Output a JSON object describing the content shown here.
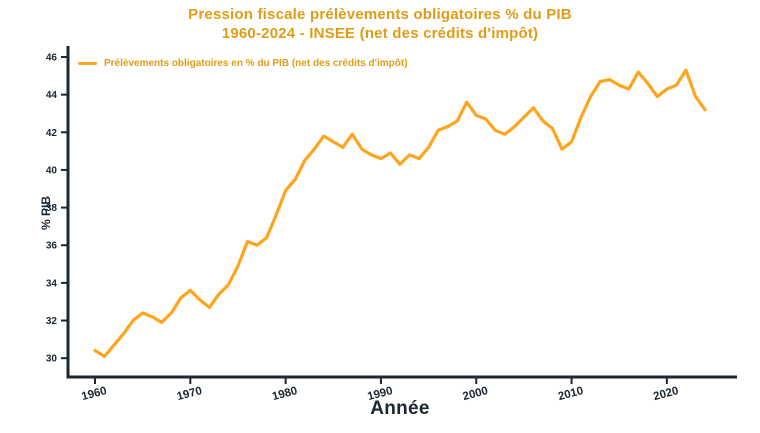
{
  "colors": {
    "line": "#FFA41C",
    "title": "#E09C15",
    "axis": "#1B2733"
  },
  "chart_data": {
    "type": "line",
    "title": "Pression fiscale prélèvements obligatoires % du PIB",
    "subtitle": "1960-2024 - INSEE (net des crédits d'impôt)",
    "xlabel": "Année",
    "ylabel": "% PIB",
    "legend": [
      "Prélèvements obligatoires en % du PIB (net des crédits d'impôt)"
    ],
    "legend_position": "upper-left",
    "grid": false,
    "xlim": [
      1960,
      2024
    ],
    "ylim": [
      29,
      46
    ],
    "xticks": [
      1960,
      1970,
      1980,
      1990,
      2000,
      2010,
      2020
    ],
    "yticks": [
      30,
      32,
      34,
      36,
      38,
      40,
      42,
      44,
      46
    ],
    "x": [
      1960,
      1961,
      1962,
      1963,
      1964,
      1965,
      1966,
      1967,
      1968,
      1969,
      1970,
      1971,
      1972,
      1973,
      1974,
      1975,
      1976,
      1977,
      1978,
      1979,
      1980,
      1981,
      1982,
      1983,
      1984,
      1985,
      1986,
      1987,
      1988,
      1989,
      1990,
      1991,
      1992,
      1993,
      1994,
      1995,
      1996,
      1997,
      1998,
      1999,
      2000,
      2001,
      2002,
      2003,
      2004,
      2005,
      2006,
      2007,
      2008,
      2009,
      2010,
      2011,
      2012,
      2013,
      2014,
      2015,
      2016,
      2017,
      2018,
      2019,
      2020,
      2021,
      2022,
      2023,
      2024
    ],
    "series": [
      {
        "name": "Prélèvements obligatoires en % du PIB (net des crédits d'impôt)",
        "values": [
          30.4,
          30.1,
          30.7,
          31.3,
          32.0,
          32.4,
          32.2,
          31.9,
          32.4,
          33.2,
          33.6,
          33.1,
          32.7,
          33.4,
          33.9,
          34.9,
          36.2,
          36.0,
          36.4,
          37.6,
          38.9,
          39.5,
          40.5,
          41.1,
          41.8,
          41.5,
          41.2,
          41.9,
          41.1,
          40.8,
          40.6,
          40.9,
          40.3,
          40.8,
          40.6,
          41.2,
          42.1,
          42.3,
          42.6,
          43.6,
          42.9,
          42.7,
          42.1,
          41.9,
          42.3,
          42.8,
          43.3,
          42.6,
          42.2,
          41.1,
          41.5,
          42.8,
          43.9,
          44.7,
          44.8,
          44.5,
          44.3,
          45.2,
          44.6,
          43.9,
          44.3,
          44.5,
          45.3,
          43.9,
          43.2
        ]
      }
    ]
  }
}
